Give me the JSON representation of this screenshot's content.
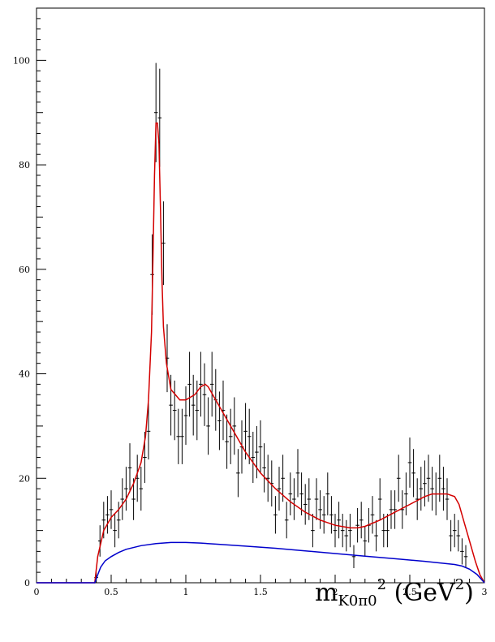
{
  "chart_data": {
    "type": "scatter",
    "title": "",
    "xlabel": {
      "base": "m",
      "subscript": "K0π0",
      "superscript": "2",
      "unit_open": " (GeV",
      "unit_sup": "2",
      "unit_close": ")"
    },
    "xlim": [
      0,
      3
    ],
    "ylim": [
      0,
      110
    ],
    "xticks": [
      "0",
      "0.5",
      "1",
      "1.5",
      "2",
      "2.5",
      "3"
    ],
    "yticks": [
      "0",
      "20",
      "40",
      "60",
      "80",
      "100"
    ],
    "colors": {
      "data": "#000000",
      "total_fit": "#d40000",
      "background_fit": "#0000cc"
    },
    "series": [
      {
        "style": "points_with_error_bars",
        "x": [
          0.4,
          0.425,
          0.45,
          0.475,
          0.5,
          0.525,
          0.55,
          0.575,
          0.6,
          0.625,
          0.65,
          0.675,
          0.7,
          0.725,
          0.75,
          0.775,
          0.8,
          0.825,
          0.85,
          0.875,
          0.9,
          0.925,
          0.95,
          0.975,
          1.0,
          1.025,
          1.05,
          1.075,
          1.1,
          1.125,
          1.15,
          1.175,
          1.2,
          1.225,
          1.25,
          1.275,
          1.3,
          1.325,
          1.35,
          1.375,
          1.4,
          1.425,
          1.45,
          1.475,
          1.5,
          1.525,
          1.55,
          1.575,
          1.6,
          1.625,
          1.65,
          1.675,
          1.7,
          1.725,
          1.75,
          1.775,
          1.8,
          1.825,
          1.85,
          1.875,
          1.9,
          1.925,
          1.95,
          1.975,
          2.0,
          2.025,
          2.05,
          2.075,
          2.1,
          2.125,
          2.15,
          2.175,
          2.2,
          2.225,
          2.25,
          2.275,
          2.3,
          2.325,
          2.35,
          2.375,
          2.4,
          2.425,
          2.45,
          2.475,
          2.5,
          2.525,
          2.55,
          2.575,
          2.6,
          2.625,
          2.65,
          2.675,
          2.7,
          2.725,
          2.75,
          2.775,
          2.8,
          2.825,
          2.85,
          2.875
        ],
        "y": [
          1,
          8,
          12,
          13,
          14,
          10,
          12,
          16,
          18,
          22,
          16,
          20,
          18,
          24,
          29,
          59,
          90,
          89,
          65,
          43,
          34,
          33,
          28,
          28,
          32,
          38,
          34,
          33,
          38,
          36,
          30,
          38,
          35,
          31,
          33,
          27,
          28,
          30,
          21,
          26,
          29,
          28,
          24,
          25,
          26,
          22,
          20,
          19,
          13,
          18,
          20,
          12,
          17,
          16,
          21,
          17,
          15,
          16,
          10,
          16,
          14,
          13,
          17,
          13,
          10,
          12,
          10,
          9,
          10,
          5,
          11,
          12,
          8,
          11,
          13,
          9,
          16,
          10,
          10,
          14,
          14,
          20,
          14,
          17,
          23,
          21,
          16,
          18,
          19,
          20,
          18,
          17,
          20,
          18,
          16,
          9,
          10,
          9,
          6,
          5
        ],
        "yerr": [
          1,
          3,
          3.5,
          3.6,
          3.7,
          3.2,
          3.5,
          4,
          4.2,
          4.7,
          4,
          4.5,
          4.2,
          4.9,
          5.4,
          7.7,
          9.5,
          9.4,
          8,
          6.5,
          5.8,
          5.7,
          5.3,
          5.3,
          5.6,
          6.2,
          5.8,
          5.7,
          6.2,
          6,
          5.5,
          6.2,
          5.9,
          5.6,
          5.7,
          5.2,
          5.3,
          5.5,
          4.6,
          5.1,
          5.4,
          5.3,
          4.9,
          5,
          5.1,
          4.7,
          4.5,
          4.4,
          3.6,
          4.2,
          4.5,
          3.5,
          4.1,
          4,
          4.6,
          4.1,
          3.9,
          4,
          3.2,
          4,
          3.7,
          3.6,
          4.1,
          3.6,
          3.2,
          3.5,
          3.2,
          3,
          3.2,
          2.2,
          3.3,
          3.5,
          2.8,
          3.3,
          3.6,
          3,
          4,
          3.2,
          3.2,
          3.7,
          3.7,
          4.5,
          3.7,
          4.1,
          4.8,
          4.6,
          4,
          4.2,
          4.4,
          4.5,
          4.2,
          4.1,
          4.5,
          4.2,
          4,
          3,
          3.2,
          3,
          2.5,
          2.2
        ]
      },
      {
        "style": "line",
        "x": [
          0,
          0.39,
          0.41,
          0.45,
          0.5,
          0.55,
          0.6,
          0.65,
          0.7,
          0.73,
          0.75,
          0.77,
          0.78,
          0.79,
          0.8,
          0.81,
          0.82,
          0.83,
          0.84,
          0.85,
          0.87,
          0.9,
          0.93,
          0.96,
          1.0,
          1.03,
          1.06,
          1.1,
          1.13,
          1.15,
          1.2,
          1.3,
          1.4,
          1.5,
          1.6,
          1.7,
          1.8,
          1.9,
          2.0,
          2.1,
          2.15,
          2.2,
          2.3,
          2.4,
          2.5,
          2.6,
          2.65,
          2.7,
          2.75,
          2.8,
          2.83,
          2.86,
          2.9,
          2.94,
          2.97,
          3.0
        ],
        "y": [
          0,
          0,
          5,
          10,
          12.5,
          14,
          16,
          19,
          23,
          28,
          35,
          48,
          62,
          78,
          88,
          88,
          84,
          72,
          58,
          49,
          42,
          37,
          36,
          35,
          35,
          35.5,
          36,
          37.5,
          38,
          37.5,
          35,
          30,
          25,
          21,
          18,
          15.5,
          13.5,
          12,
          11,
          10.5,
          10.5,
          10.8,
          12,
          13.5,
          15,
          16.5,
          17,
          17,
          17,
          16.5,
          15,
          12,
          8,
          4,
          1.5,
          0
        ]
      },
      {
        "style": "line",
        "x": [
          0,
          0.39,
          0.41,
          0.43,
          0.46,
          0.5,
          0.55,
          0.6,
          0.7,
          0.8,
          0.9,
          1.0,
          1.1,
          1.2,
          1.4,
          1.6,
          1.8,
          2.0,
          2.2,
          2.4,
          2.6,
          2.8,
          2.85,
          2.9,
          2.95,
          3.0
        ],
        "y": [
          0,
          0,
          1.5,
          3,
          4.2,
          5,
          5.8,
          6.4,
          7.1,
          7.5,
          7.7,
          7.7,
          7.6,
          7.4,
          7,
          6.6,
          6.1,
          5.6,
          5.1,
          4.6,
          4.1,
          3.5,
          3.2,
          2.6,
          1.6,
          0
        ]
      }
    ]
  }
}
